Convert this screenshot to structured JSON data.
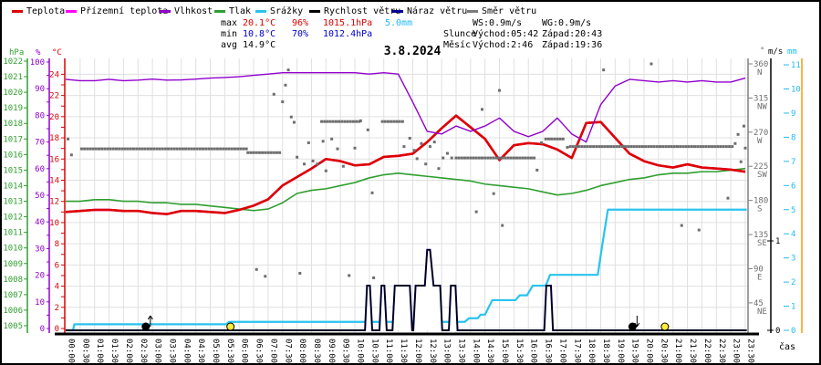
{
  "title": "3.8.2024",
  "colors": {
    "red": "#dd0000",
    "blue": "#0000cc",
    "cyan": "#22bbee",
    "black": "#000000",
    "magenta": "#ff00ff",
    "violet": "#9100cc",
    "green": "#2f9e2f",
    "navy": "#000099",
    "gray": "#7a7a7a",
    "grid": "#e0e0e0",
    "orange": "#ff9900"
  },
  "legend": {
    "items": [
      {
        "label": "Teplota",
        "color": "#dd0000"
      },
      {
        "label": "Přízemní teplota",
        "color": "#ff00ff"
      },
      {
        "label": "Vlhkost",
        "color": "#9100cc"
      },
      {
        "label": "Tlak",
        "color": "#2f9e2f"
      },
      {
        "label": "Srážky",
        "color": "#29c3ee"
      },
      {
        "label": "Rychlost větru",
        "color": "#000000"
      },
      {
        "label": "Náraz větru",
        "color": "#000099"
      },
      {
        "label": "Směr větru",
        "color": "#7a7a7a"
      }
    ]
  },
  "stats": {
    "max": {
      "label": "max",
      "temp": "20.1°C",
      "humidity": "96%",
      "pressure": "1015.1hPa",
      "rain": "5.0mm"
    },
    "min": {
      "label": "min",
      "temp": "10.8°C",
      "humidity": "70%",
      "pressure": "1012.4hPa"
    },
    "avg": {
      "label": "avg",
      "temp": "14.9°C"
    },
    "wind": {
      "ws": "WS:0.9m/s",
      "wg": "WG:0.9m/s"
    },
    "sun": {
      "label": "Slunce",
      "rise": "Východ:05:42",
      "set": "Západ:20:43"
    },
    "moon": {
      "label": "Měsíc",
      "rise": "Východ:2:46",
      "set": "Západ:19:36"
    }
  },
  "chart_data": {
    "type": "line",
    "title": "3.8.2024",
    "xlabel": "čas",
    "x_hours": {
      "start": 0,
      "end": 23.5,
      "label_step": 0.5
    },
    "grid": true,
    "axes": {
      "temp_c": {
        "header": "°C",
        "min": 0,
        "max": 24,
        "tick": 1,
        "label_step": 2,
        "color": "#dd0000"
      },
      "humidity_pct": {
        "header": "%",
        "min": 0,
        "max": 100,
        "tick": 5,
        "label_step": 10,
        "color": "#9100cc"
      },
      "pressure_hpa": {
        "header": "hPa",
        "min": 1005,
        "max": 1022,
        "label_step": 1,
        "color": "#2f9e2f"
      },
      "wind_dir_deg": {
        "header": "°",
        "min": 0,
        "max": 360,
        "label_step": 45,
        "compass": [
          "NE",
          "E",
          "SE",
          "S",
          "SW",
          "W",
          "NW",
          "N"
        ],
        "color": "#808080"
      },
      "wind_ms": {
        "header": "m/s",
        "labels": [
          0,
          1
        ],
        "color": "#000000"
      },
      "precip_mm": {
        "header": "mm",
        "min": 0,
        "max": 11,
        "label_step": 1,
        "color": "#22bbee"
      }
    },
    "series": {
      "temperature": {
        "name": "Teplota",
        "unit": "°C",
        "color": "#dd0000",
        "step_h": 0.5,
        "values": [
          11.0,
          11.1,
          11.2,
          11.2,
          11.1,
          11.1,
          10.9,
          10.8,
          11.1,
          11.1,
          11.0,
          10.9,
          11.2,
          11.6,
          12.2,
          13.5,
          14.3,
          15.1,
          16.0,
          15.8,
          15.4,
          15.5,
          16.2,
          16.3,
          16.5,
          17.6,
          18.9,
          20.1,
          19.0,
          17.9,
          15.9,
          17.3,
          17.5,
          17.4,
          16.9,
          16.1,
          19.4,
          19.5,
          18.0,
          16.5,
          15.8,
          15.4,
          15.2,
          15.5,
          15.2,
          15.1,
          15.0,
          14.8
        ]
      },
      "ground_temperature": {
        "name": "Přízemní teplota",
        "unit": "°C",
        "color": "#ff00ff",
        "step_h": 0.5,
        "note": "coincides with air temperature in this plot",
        "values": [
          11.0,
          11.1,
          11.2,
          11.2,
          11.1,
          11.1,
          10.9,
          10.8,
          11.1,
          11.1,
          11.0,
          10.9,
          11.2,
          11.6,
          12.2,
          13.5,
          14.3,
          15.1,
          16.0,
          15.8,
          15.4,
          15.5,
          16.2,
          16.3,
          16.5,
          17.6,
          18.9,
          20.1,
          19.0,
          17.9,
          15.9,
          17.3,
          17.5,
          17.4,
          16.9,
          16.1,
          19.4,
          19.5,
          18.0,
          16.5,
          15.8,
          15.4,
          15.2,
          15.5,
          15.2,
          15.1,
          15.0,
          14.8
        ]
      },
      "humidity": {
        "name": "Vlhkost",
        "unit": "%",
        "color": "#9100cc",
        "step_h": 0.5,
        "values": [
          93.5,
          93,
          93,
          93.5,
          93,
          93.2,
          93.6,
          93.2,
          93.3,
          93.6,
          94,
          94.2,
          94.5,
          95,
          95.5,
          96,
          96,
          96,
          96,
          96,
          96,
          95.5,
          96,
          95.5,
          85,
          74,
          73,
          76,
          74,
          76,
          79,
          74,
          72,
          74,
          79,
          73,
          70,
          84,
          91,
          93.5,
          93,
          92.5,
          93,
          92.5,
          93,
          92.5,
          92.5,
          94
        ]
      },
      "pressure": {
        "name": "Tlak",
        "unit": "hPa",
        "color": "#2f9e2f",
        "step_h": 0.5,
        "values": [
          1013.0,
          1013.0,
          1013.1,
          1013.1,
          1013.0,
          1013.0,
          1012.9,
          1012.9,
          1012.8,
          1012.8,
          1012.7,
          1012.6,
          1012.5,
          1012.4,
          1012.5,
          1012.9,
          1013.5,
          1013.7,
          1013.8,
          1014.0,
          1014.2,
          1014.5,
          1014.7,
          1014.8,
          1014.7,
          1014.6,
          1014.5,
          1014.4,
          1014.3,
          1014.1,
          1014.0,
          1013.9,
          1013.8,
          1013.6,
          1013.4,
          1013.5,
          1013.7,
          1014.0,
          1014.2,
          1014.4,
          1014.5,
          1014.7,
          1014.8,
          1014.8,
          1014.9,
          1014.9,
          1015.0,
          1015.1
        ]
      },
      "precip_cumulative": {
        "name": "Srážky",
        "unit": "mm",
        "color": "#29c3ee",
        "points": [
          [
            0,
            0
          ],
          [
            0.25,
            0
          ],
          [
            0.3,
            0.25
          ],
          [
            5.55,
            0.25
          ],
          [
            5.65,
            0.35
          ],
          [
            13.8,
            0.35
          ],
          [
            13.95,
            0.5
          ],
          [
            14.25,
            0.5
          ],
          [
            14.35,
            0.65
          ],
          [
            14.5,
            0.65
          ],
          [
            14.75,
            1.25
          ],
          [
            15.55,
            1.25
          ],
          [
            15.7,
            1.45
          ],
          [
            15.95,
            1.45
          ],
          [
            16.15,
            1.85
          ],
          [
            16.6,
            1.85
          ],
          [
            16.75,
            2.3
          ],
          [
            18.4,
            2.3
          ],
          [
            18.55,
            3.5
          ],
          [
            18.75,
            5.0
          ],
          [
            23.55,
            5.0
          ]
        ]
      },
      "wind_speed": {
        "name": "Rychlost větru",
        "unit": "m/s",
        "color": "#000000",
        "points": [
          [
            0,
            0
          ],
          [
            10.35,
            0
          ],
          [
            10.42,
            0.5
          ],
          [
            10.52,
            0.5
          ],
          [
            10.6,
            0
          ],
          [
            10.85,
            0
          ],
          [
            10.92,
            0.5
          ],
          [
            11.02,
            0.5
          ],
          [
            11.1,
            0
          ],
          [
            11.3,
            0
          ],
          [
            11.38,
            0.5
          ],
          [
            11.9,
            0.5
          ],
          [
            11.98,
            0
          ],
          [
            12.02,
            0
          ],
          [
            12.1,
            0.5
          ],
          [
            12.42,
            0.5
          ],
          [
            12.5,
            0.9
          ],
          [
            12.6,
            0.9
          ],
          [
            12.72,
            0.5
          ],
          [
            12.95,
            0.5
          ],
          [
            13.02,
            0
          ],
          [
            13.25,
            0
          ],
          [
            13.32,
            0.5
          ],
          [
            13.48,
            0.5
          ],
          [
            13.55,
            0
          ],
          [
            16.55,
            0
          ],
          [
            16.62,
            0.5
          ],
          [
            16.78,
            0.5
          ],
          [
            16.85,
            0
          ],
          [
            23.55,
            0
          ]
        ]
      },
      "wind_gust": {
        "name": "Náraz větru",
        "unit": "m/s",
        "color": "#000099",
        "points": [
          [
            0,
            0
          ],
          [
            10.35,
            0
          ],
          [
            10.42,
            0.5
          ],
          [
            10.52,
            0.5
          ],
          [
            10.6,
            0
          ],
          [
            10.85,
            0
          ],
          [
            10.92,
            0.5
          ],
          [
            11.02,
            0.5
          ],
          [
            11.1,
            0
          ],
          [
            11.3,
            0
          ],
          [
            11.38,
            0.5
          ],
          [
            11.9,
            0.5
          ],
          [
            11.98,
            0
          ],
          [
            12.02,
            0
          ],
          [
            12.1,
            0.5
          ],
          [
            12.42,
            0.5
          ],
          [
            12.5,
            0.9
          ],
          [
            12.6,
            0.9
          ],
          [
            12.72,
            0.5
          ],
          [
            12.95,
            0.5
          ],
          [
            13.02,
            0
          ],
          [
            13.25,
            0
          ],
          [
            13.32,
            0.5
          ],
          [
            13.48,
            0.5
          ],
          [
            13.55,
            0
          ],
          [
            16.55,
            0
          ],
          [
            16.62,
            0.5
          ],
          [
            16.78,
            0.5
          ],
          [
            16.85,
            0
          ],
          [
            23.55,
            0
          ]
        ]
      },
      "wind_direction": {
        "name": "Směr větru",
        "unit": "°",
        "color": "#6e6e6e",
        "runs": [
          [
            0.55,
            6.3,
            248
          ],
          [
            6.3,
            7.45,
            243
          ],
          [
            8.85,
            10.15,
            284
          ],
          [
            10.95,
            11.65,
            284
          ],
          [
            13.5,
            16.2,
            236
          ],
          [
            16.6,
            17.25,
            261
          ],
          [
            17.45,
            23.1,
            251
          ]
        ],
        "dots": [
          [
            0.08,
            261
          ],
          [
            0.2,
            240
          ],
          [
            6.6,
            89
          ],
          [
            6.9,
            80
          ],
          [
            7.2,
            320
          ],
          [
            7.5,
            310
          ],
          [
            7.6,
            332
          ],
          [
            7.7,
            352
          ],
          [
            7.8,
            290
          ],
          [
            7.9,
            283
          ],
          [
            8.0,
            237
          ],
          [
            8.1,
            84
          ],
          [
            8.25,
            228
          ],
          [
            8.4,
            256
          ],
          [
            8.55,
            232
          ],
          [
            8.7,
            228
          ],
          [
            8.9,
            258
          ],
          [
            9.0,
            219
          ],
          [
            9.2,
            261
          ],
          [
            9.4,
            248
          ],
          [
            9.6,
            225
          ],
          [
            9.8,
            81
          ],
          [
            10.0,
            249
          ],
          [
            10.2,
            285
          ],
          [
            10.45,
            273
          ],
          [
            10.6,
            190
          ],
          [
            10.65,
            78
          ],
          [
            11.7,
            251
          ],
          [
            11.9,
            262
          ],
          [
            12.05,
            246
          ],
          [
            12.15,
            235
          ],
          [
            12.3,
            255
          ],
          [
            12.45,
            228
          ],
          [
            12.6,
            251
          ],
          [
            12.75,
            257
          ],
          [
            12.9,
            222
          ],
          [
            13.05,
            236
          ],
          [
            13.2,
            242
          ],
          [
            13.35,
            236
          ],
          [
            14.2,
            165
          ],
          [
            14.4,
            300
          ],
          [
            14.8,
            189
          ],
          [
            15.0,
            325
          ],
          [
            15.1,
            147
          ],
          [
            16.3,
            220
          ],
          [
            16.45,
            256
          ],
          [
            17.35,
            250
          ],
          [
            18.6,
            352
          ],
          [
            20.25,
            360
          ],
          [
            21.3,
            147
          ],
          [
            21.9,
            141
          ],
          [
            22.9,
            183
          ],
          [
            23.15,
            255
          ],
          [
            23.25,
            267
          ],
          [
            23.35,
            231
          ],
          [
            23.45,
            278
          ],
          [
            23.5,
            249
          ]
        ]
      }
    },
    "sun_moon_markers": {
      "moonrise": {
        "t": 2.77,
        "time": "2:46",
        "kind": "moon",
        "dir": "up"
      },
      "sunrise": {
        "t": 5.7,
        "time": "05:42",
        "kind": "sun",
        "dir": "up"
      },
      "moonset": {
        "t": 19.6,
        "time": "19:36",
        "kind": "moon",
        "dir": "down"
      },
      "sunset": {
        "t": 20.72,
        "time": "20:43",
        "kind": "sun",
        "dir": "down"
      }
    }
  }
}
